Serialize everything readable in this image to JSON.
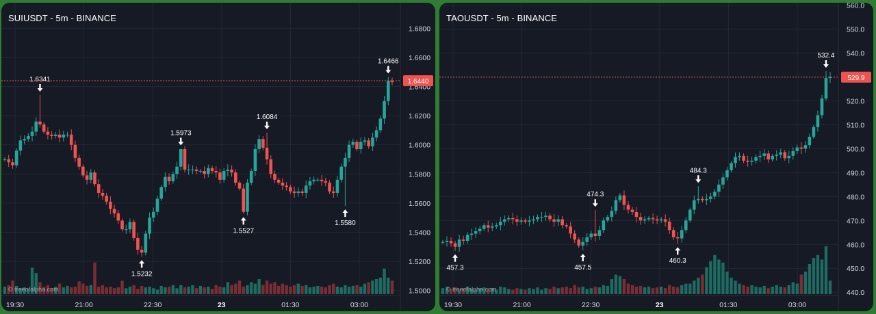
{
  "colors": {
    "background_outer": "#2f7d32",
    "panel_bg": "#161a25",
    "grid": "#232735",
    "up": "#26a69a",
    "down": "#ef5350",
    "up_volume": "#1e6b61",
    "down_volume": "#7a2e33",
    "price_line": "#ef5350",
    "axis_text": "#d7d9de"
  },
  "watermark": "© treeofalpha.com",
  "chart_data": [
    {
      "type": "candlestick",
      "title": "SUIUSDT - 5m - BINANCE",
      "x_ticks": [
        "19:30",
        "21:00",
        "22:30",
        "23",
        "01:30",
        "03:00"
      ],
      "bold_x_tick": "23",
      "y_ticks": [
        "1.5000",
        "1.5200",
        "1.5400",
        "1.5600",
        "1.5800",
        "1.6000",
        "1.6200",
        "1.6400",
        "1.6600",
        "1.6800"
      ],
      "ylim": [
        1.4975,
        1.6975
      ],
      "current_price": "1.6440",
      "current_price_value": 1.644,
      "high_markers": [
        "1.6341",
        "1.5973",
        "1.6084",
        "1.6466"
      ],
      "low_markers": [
        "1.5232",
        "1.5527",
        "1.5580"
      ],
      "close": [
        1.59,
        1.588,
        1.586,
        1.596,
        1.603,
        1.604,
        1.606,
        1.609,
        1.616,
        1.614,
        1.609,
        1.607,
        1.606,
        1.607,
        1.605,
        1.607,
        1.607,
        1.6,
        1.591,
        1.585,
        1.579,
        1.576,
        1.581,
        1.573,
        1.567,
        1.565,
        1.561,
        1.556,
        1.553,
        1.548,
        1.542,
        1.542,
        1.547,
        1.536,
        1.528,
        1.526,
        1.539,
        1.55,
        1.554,
        1.563,
        1.571,
        1.578,
        1.575,
        1.58,
        1.585,
        1.597,
        1.583,
        1.583,
        1.583,
        1.582,
        1.582,
        1.58,
        1.584,
        1.582,
        1.581,
        1.576,
        1.582,
        1.583,
        1.581,
        1.574,
        1.57,
        1.554,
        1.574,
        1.582,
        1.597,
        1.604,
        1.598,
        1.59,
        1.58,
        1.576,
        1.574,
        1.572,
        1.571,
        1.568,
        1.567,
        1.568,
        1.567,
        1.572,
        1.575,
        1.576,
        1.576,
        1.575,
        1.574,
        1.568,
        1.567,
        1.576,
        1.585,
        1.591,
        1.6,
        1.602,
        1.597,
        1.602,
        1.603,
        1.599,
        1.605,
        1.61,
        1.618,
        1.63,
        1.644,
        1.643
      ],
      "high_marker_index": [
        9,
        45,
        67,
        98
      ],
      "low_marker_index": [
        35,
        61,
        87
      ],
      "volume": [
        0.1,
        0.12,
        0.18,
        0.11,
        0.08,
        0.09,
        0.07,
        0.35,
        0.28,
        0.16,
        0.1,
        0.12,
        0.08,
        0.1,
        0.14,
        0.09,
        0.11,
        0.09,
        0.1,
        0.17,
        0.14,
        0.11,
        0.12,
        0.42,
        0.1,
        0.12,
        0.09,
        0.1,
        0.08,
        0.09,
        0.18,
        0.08,
        0.1,
        0.12,
        0.07,
        0.11,
        0.09,
        0.1,
        0.08,
        0.06,
        0.11,
        0.09,
        0.1,
        0.12,
        0.08,
        0.12,
        0.09,
        0.1,
        0.12,
        0.08,
        0.11,
        0.09,
        0.1,
        0.07,
        0.12,
        0.1,
        0.09,
        0.16,
        0.12,
        0.14,
        0.18,
        0.1,
        0.12,
        0.16,
        0.14,
        0.2,
        0.12,
        0.18,
        0.14,
        0.16,
        0.11,
        0.14,
        0.12,
        0.1,
        0.12,
        0.14,
        0.11,
        0.12,
        0.09,
        0.1,
        0.11,
        0.1,
        0.09,
        0.12,
        0.14,
        0.1,
        0.09,
        0.12,
        0.1,
        0.11,
        0.12,
        0.1,
        0.14,
        0.16,
        0.18,
        0.2,
        0.22,
        0.34,
        0.22,
        0.18
      ]
    },
    {
      "type": "candlestick",
      "title": "TAOUSDT - 5m - BINANCE",
      "x_ticks": [
        "19:30",
        "21:00",
        "22:30",
        "23",
        "01:30",
        "03:00"
      ],
      "bold_x_tick": "23",
      "y_ticks": [
        "440.0",
        "450.0",
        "460.0",
        "470.0",
        "480.0",
        "490.0",
        "500.0",
        "510.0",
        "520.0",
        "530.0",
        "540.0",
        "550.0",
        "560.0"
      ],
      "ylim": [
        439.2,
        561.0
      ],
      "current_price": "529.9",
      "current_price_value": 529.9,
      "high_markers": [
        "474.3",
        "484.3",
        "532.4"
      ],
      "low_markers": [
        "457.3",
        "457.5",
        "460.3"
      ],
      "close": [
        461.0,
        461.5,
        460.5,
        459.0,
        462.0,
        461.5,
        464.0,
        464.5,
        465.5,
        466.5,
        468.0,
        467.0,
        467.5,
        468.0,
        469.5,
        470.5,
        471.0,
        470.5,
        469.5,
        470.0,
        469.5,
        470.0,
        470.5,
        471.5,
        471.5,
        472.0,
        470.5,
        469.5,
        470.5,
        468.0,
        467.5,
        464.5,
        462.0,
        459.5,
        461.0,
        463.0,
        464.5,
        463.5,
        466.0,
        470.0,
        471.5,
        474.0,
        478.5,
        480.5,
        476.5,
        474.5,
        473.5,
        471.5,
        470.0,
        470.5,
        471.0,
        470.5,
        470.0,
        470.5,
        469.5,
        466.0,
        463.0,
        462.5,
        466.0,
        470.0,
        474.5,
        478.5,
        479.0,
        478.5,
        479.0,
        480.0,
        482.0,
        485.0,
        488.0,
        491.0,
        494.0,
        496.5,
        497.0,
        495.0,
        494.5,
        495.0,
        496.5,
        497.0,
        498.0,
        495.5,
        497.0,
        497.5,
        498.5,
        496.0,
        497.0,
        499.0,
        500.5,
        500.0,
        501.5,
        505.0,
        509.0,
        514.0,
        521.0,
        529.5,
        530.0
      ],
      "high_marker_index": [
        37,
        62,
        93
      ],
      "low_marker_index": [
        3,
        34,
        57
      ],
      "volume": [
        0.08,
        0.1,
        0.07,
        0.09,
        0.06,
        0.08,
        0.1,
        0.07,
        0.06,
        0.08,
        0.09,
        0.07,
        0.08,
        0.06,
        0.1,
        0.09,
        0.07,
        0.06,
        0.08,
        0.07,
        0.06,
        0.08,
        0.07,
        0.09,
        0.06,
        0.08,
        0.07,
        0.1,
        0.08,
        0.09,
        0.1,
        0.08,
        0.12,
        0.09,
        0.1,
        0.07,
        0.08,
        0.1,
        0.09,
        0.12,
        0.11,
        0.2,
        0.26,
        0.24,
        0.2,
        0.14,
        0.12,
        0.1,
        0.11,
        0.09,
        0.1,
        0.08,
        0.09,
        0.1,
        0.08,
        0.12,
        0.1,
        0.09,
        0.12,
        0.14,
        0.14,
        0.18,
        0.22,
        0.26,
        0.36,
        0.44,
        0.52,
        0.46,
        0.42,
        0.3,
        0.22,
        0.18,
        0.14,
        0.12,
        0.1,
        0.12,
        0.1,
        0.09,
        0.11,
        0.08,
        0.1,
        0.12,
        0.1,
        0.09,
        0.12,
        0.16,
        0.14,
        0.26,
        0.3,
        0.4,
        0.48,
        0.52,
        0.46,
        0.72,
        0.18
      ]
    }
  ]
}
